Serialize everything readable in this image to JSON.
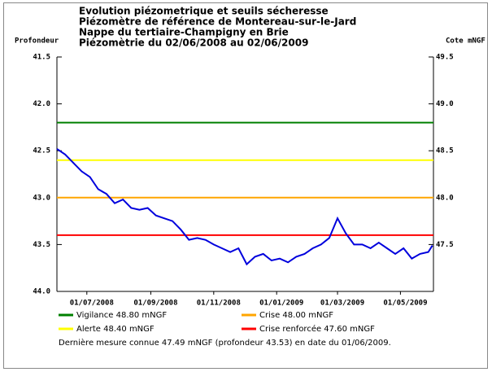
{
  "chart_data": {
    "type": "line",
    "title_lines": [
      "Evolution piézometrique et seuils sécheresse",
      "Piézomètre de référence de Montereau-sur-le-Jard",
      "Nappe du tertiaire-Champigny en Brie",
      "Piézomètrie du 02/06/2008 au 02/06/2009"
    ],
    "ylabel": "Profondeur",
    "y2label": "Cote mNGF",
    "ylim": [
      41.5,
      44.0
    ],
    "y_inverted": true,
    "yticks": [
      41.5,
      {
        "value": 42,
        "label": "42.0"
      },
      42.5,
      {
        "value": 43,
        "label": "43.0"
      },
      43.5,
      {
        "value": 44,
        "label": "44.0"
      }
    ],
    "y2lim": [
      47.0,
      49.5
    ],
    "y2ticks": [
      49.5,
      {
        "value": 49,
        "label": "49.0"
      },
      48.5,
      {
        "value": 48,
        "label": "48.0"
      },
      47.5
    ],
    "xlim": [
      "2008-06-02",
      "2009-06-02"
    ],
    "xticks": [
      {
        "value": "2008-07-01",
        "label": "01/07/2008"
      },
      {
        "value": "2008-09-01",
        "label": "01/09/2008"
      },
      {
        "value": "2008-11-01",
        "label": "01/11/2008"
      },
      {
        "value": "2009-01-01",
        "label": "01/01/2009"
      },
      {
        "value": "2009-03-01",
        "label": "01/03/2009"
      },
      {
        "value": "2009-05-01",
        "label": "01/05/2009"
      }
    ],
    "x": [
      "2008-06-02",
      "2008-06-10",
      "2008-06-18",
      "2008-06-26",
      "2008-07-04",
      "2008-07-12",
      "2008-07-20",
      "2008-07-28",
      "2008-08-05",
      "2008-08-13",
      "2008-08-21",
      "2008-08-29",
      "2008-09-06",
      "2008-09-14",
      "2008-09-22",
      "2008-09-30",
      "2008-10-08",
      "2008-10-16",
      "2008-10-24",
      "2008-11-01",
      "2008-11-09",
      "2008-11-17",
      "2008-11-25",
      "2008-12-03",
      "2008-12-11",
      "2008-12-19",
      "2008-12-27",
      "2009-01-04",
      "2009-01-12",
      "2009-01-20",
      "2009-01-28",
      "2009-02-05",
      "2009-02-13",
      "2009-02-21",
      "2009-03-01",
      "2009-03-09",
      "2009-03-17",
      "2009-03-25",
      "2009-04-02",
      "2009-04-10",
      "2009-04-18",
      "2009-04-26",
      "2009-05-04",
      "2009-05-12",
      "2009-05-20",
      "2009-05-28",
      "2009-06-01"
    ],
    "series": [
      {
        "color": "#0000dd",
        "axis": "y2",
        "values": [
          48.52,
          48.46,
          48.37,
          48.28,
          48.22,
          48.09,
          48.04,
          47.94,
          47.98,
          47.89,
          47.87,
          47.89,
          47.81,
          47.78,
          47.75,
          47.66,
          47.55,
          47.57,
          47.55,
          47.5,
          47.46,
          47.42,
          47.46,
          47.29,
          47.37,
          47.4,
          47.33,
          47.35,
          47.31,
          47.37,
          47.4,
          47.46,
          47.5,
          47.57,
          47.78,
          47.62,
          47.5,
          47.5,
          47.46,
          47.52,
          47.46,
          47.4,
          47.46,
          47.35,
          47.4,
          47.42,
          47.49
        ]
      }
    ],
    "thresholds": [
      {
        "name": "Vigilance 48.80 mNGF",
        "value": 48.8,
        "color": "#008000"
      },
      {
        "name": "Crise 48.00 mNGF",
        "value": 48.0,
        "color": "#ffa500"
      },
      {
        "name": "Alerte 48.40 mNGF",
        "value": 48.4,
        "color": "#ffff00"
      },
      {
        "name": "Crise renforcée 47.60 mNGF",
        "value": 47.6,
        "color": "#ff0000"
      }
    ],
    "note": "Dernière mesure connue 47.49 mNGF (profondeur  43.53) en date du 01/06/2009."
  }
}
